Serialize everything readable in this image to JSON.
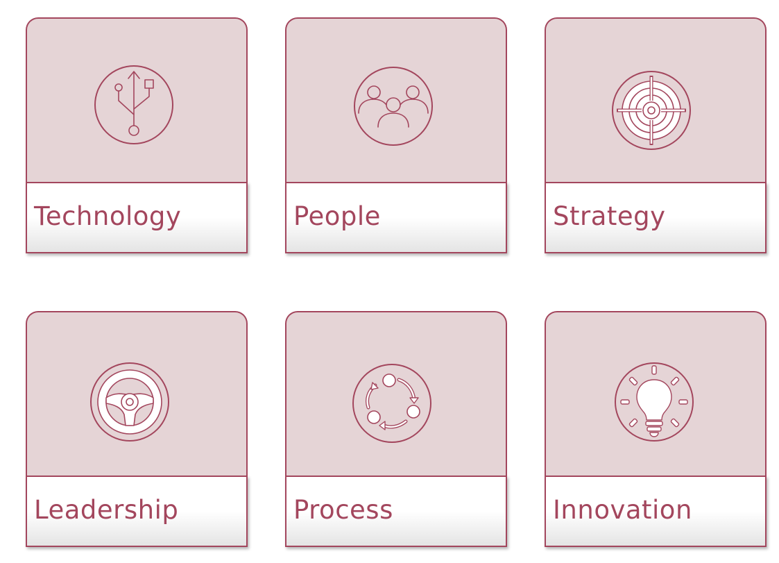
{
  "cards": [
    {
      "label": "Technology",
      "icon": "usb-icon"
    },
    {
      "label": "People",
      "icon": "people-group-icon"
    },
    {
      "label": "Strategy",
      "icon": "target-icon"
    },
    {
      "label": "Leadership",
      "icon": "steering-wheel-icon"
    },
    {
      "label": "Process",
      "icon": "cycle-process-icon"
    },
    {
      "label": "Innovation",
      "icon": "lightbulb-icon"
    }
  ],
  "colors": {
    "accent": "#a3465d",
    "card_background": "#e5d4d6",
    "label_background": "#ffffff"
  }
}
